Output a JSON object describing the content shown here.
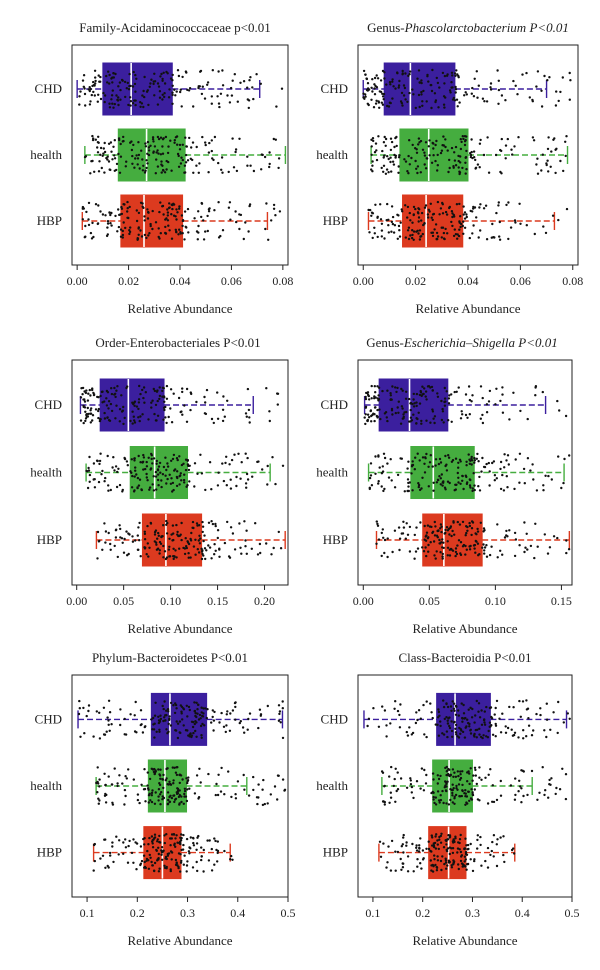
{
  "colors": {
    "CHD": "#3b1f9e",
    "health": "#45ad3f",
    "HBP": "#dc3a1f",
    "median": "#ffffff",
    "point": "#111111"
  },
  "chart_data": [
    {
      "type": "box",
      "title_prefix": "Family-Acidaminococcaceae",
      "title_italic": "",
      "title_suffix": " p<0.01",
      "xlabel": "Relative Abundance",
      "xlim": [
        -0.002,
        0.082
      ],
      "xticks": [
        0.0,
        0.02,
        0.04,
        0.06,
        0.08
      ],
      "tick_labels": [
        "0.00",
        "0.02",
        "0.04",
        "0.06",
        "0.08"
      ],
      "groups": [
        {
          "name": "CHD",
          "whisker_low": 0.0,
          "q1": 0.01,
          "median": 0.021,
          "q3": 0.037,
          "whisker_high": 0.071,
          "extent": [
            0.0,
            0.08
          ]
        },
        {
          "name": "health",
          "whisker_low": 0.003,
          "q1": 0.016,
          "median": 0.027,
          "q3": 0.042,
          "whisker_high": 0.081,
          "extent": [
            0.002,
            0.081
          ]
        },
        {
          "name": "HBP",
          "whisker_low": 0.002,
          "q1": 0.017,
          "median": 0.026,
          "q3": 0.041,
          "whisker_high": 0.074,
          "extent": [
            0.001,
            0.08
          ]
        }
      ]
    },
    {
      "type": "box",
      "title_prefix": "Genus-",
      "title_italic": "Phascolarctobacterium P<0.01",
      "title_suffix": "",
      "xlabel": "Relative Abundance",
      "xlim": [
        -0.002,
        0.082
      ],
      "xticks": [
        0.0,
        0.02,
        0.04,
        0.06,
        0.08
      ],
      "tick_labels": [
        "0.00",
        "0.02",
        "0.04",
        "0.06",
        "0.08"
      ],
      "groups": [
        {
          "name": "CHD",
          "whisker_low": 0.0,
          "q1": 0.008,
          "median": 0.018,
          "q3": 0.035,
          "whisker_high": 0.07,
          "extent": [
            0.0,
            0.08
          ]
        },
        {
          "name": "health",
          "whisker_low": 0.003,
          "q1": 0.014,
          "median": 0.025,
          "q3": 0.04,
          "whisker_high": 0.078,
          "extent": [
            0.002,
            0.079
          ]
        },
        {
          "name": "HBP",
          "whisker_low": 0.002,
          "q1": 0.015,
          "median": 0.024,
          "q3": 0.038,
          "whisker_high": 0.073,
          "extent": [
            0.001,
            0.078
          ]
        }
      ]
    },
    {
      "type": "box",
      "title_prefix": "Order-Enterobacteriales",
      "title_italic": "",
      "title_suffix": " P<0.01",
      "xlabel": "Relative Abundance",
      "xlim": [
        -0.005,
        0.225
      ],
      "xticks": [
        0.0,
        0.05,
        0.1,
        0.15,
        0.2
      ],
      "tick_labels": [
        "0.00",
        "0.05",
        "0.10",
        "0.15",
        "0.20"
      ],
      "groups": [
        {
          "name": "CHD",
          "whisker_low": 0.004,
          "q1": 0.025,
          "median": 0.055,
          "q3": 0.093,
          "whisker_high": 0.188,
          "extent": [
            0.003,
            0.215
          ]
        },
        {
          "name": "health",
          "whisker_low": 0.01,
          "q1": 0.057,
          "median": 0.083,
          "q3": 0.118,
          "whisker_high": 0.206,
          "extent": [
            0.008,
            0.222
          ]
        },
        {
          "name": "HBP",
          "whisker_low": 0.021,
          "q1": 0.07,
          "median": 0.095,
          "q3": 0.133,
          "whisker_high": 0.222,
          "extent": [
            0.02,
            0.224
          ]
        }
      ]
    },
    {
      "type": "box",
      "title_prefix": "Genus-",
      "title_italic": "Escherichia–Shigella P<0.01",
      "title_suffix": "",
      "xlabel": "Relative Abundance",
      "xlim": [
        -0.004,
        0.158
      ],
      "xticks": [
        0.0,
        0.05,
        0.1,
        0.15
      ],
      "tick_labels": [
        "0.00",
        "0.05",
        "0.10",
        "0.15"
      ],
      "groups": [
        {
          "name": "CHD",
          "whisker_low": 0.001,
          "q1": 0.012,
          "median": 0.035,
          "q3": 0.064,
          "whisker_high": 0.138,
          "extent": [
            0.001,
            0.157
          ]
        },
        {
          "name": "health",
          "whisker_low": 0.004,
          "q1": 0.036,
          "median": 0.053,
          "q3": 0.084,
          "whisker_high": 0.152,
          "extent": [
            0.003,
            0.157
          ]
        },
        {
          "name": "HBP",
          "whisker_low": 0.01,
          "q1": 0.045,
          "median": 0.061,
          "q3": 0.09,
          "whisker_high": 0.156,
          "extent": [
            0.009,
            0.157
          ]
        }
      ]
    },
    {
      "type": "box",
      "title_prefix": "Phylum-Bacteroidetes",
      "title_italic": "",
      "title_suffix": " P<0.01",
      "xlabel": "Relative Abundance",
      "xlim": [
        0.07,
        0.5
      ],
      "xticks": [
        0.1,
        0.2,
        0.3,
        0.4,
        0.5
      ],
      "tick_labels": [
        "0.1",
        "0.2",
        "0.3",
        "0.4",
        "0.5"
      ],
      "groups": [
        {
          "name": "CHD",
          "whisker_low": 0.082,
          "q1": 0.228,
          "median": 0.265,
          "q3": 0.338,
          "whisker_high": 0.489,
          "extent": [
            0.082,
            0.498
          ]
        },
        {
          "name": "health",
          "whisker_low": 0.118,
          "q1": 0.222,
          "median": 0.255,
          "q3": 0.298,
          "whisker_high": 0.418,
          "extent": [
            0.115,
            0.495
          ]
        },
        {
          "name": "HBP",
          "whisker_low": 0.113,
          "q1": 0.213,
          "median": 0.25,
          "q3": 0.287,
          "whisker_high": 0.385,
          "extent": [
            0.112,
            0.39
          ]
        }
      ]
    },
    {
      "type": "box",
      "title_prefix": "Class-Bacteroidia",
      "title_italic": "",
      "title_suffix": " P<0.01",
      "xlabel": "Relative Abundance",
      "xlim": [
        0.07,
        0.5
      ],
      "xticks": [
        0.1,
        0.2,
        0.3,
        0.4,
        0.5
      ],
      "tick_labels": [
        "0.1",
        "0.2",
        "0.3",
        "0.4",
        "0.5"
      ],
      "groups": [
        {
          "name": "CHD",
          "whisker_low": 0.082,
          "q1": 0.228,
          "median": 0.265,
          "q3": 0.336,
          "whisker_high": 0.489,
          "extent": [
            0.082,
            0.498
          ]
        },
        {
          "name": "health",
          "whisker_low": 0.118,
          "q1": 0.22,
          "median": 0.253,
          "q3": 0.3,
          "whisker_high": 0.42,
          "extent": [
            0.115,
            0.495
          ]
        },
        {
          "name": "HBP",
          "whisker_low": 0.112,
          "q1": 0.212,
          "median": 0.252,
          "q3": 0.287,
          "whisker_high": 0.385,
          "extent": [
            0.11,
            0.39
          ]
        }
      ]
    }
  ]
}
